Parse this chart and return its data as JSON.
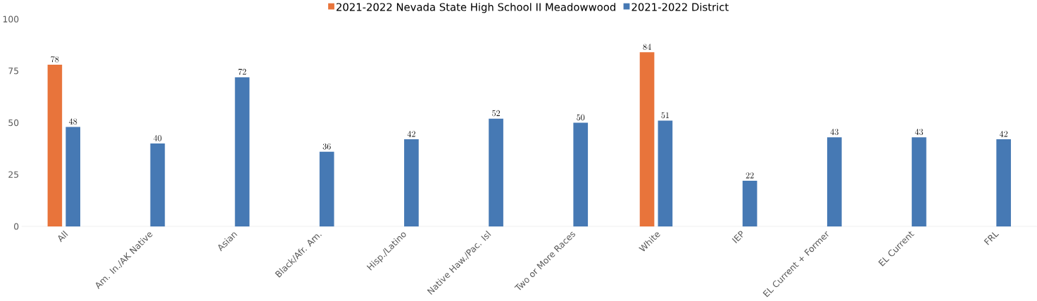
{
  "chart_data": {
    "type": "bar",
    "categories": [
      "All",
      "Am. In./AK Native",
      "Asian",
      "Black/Afr. Am.",
      "Hisp./Latino",
      "Native Haw./Pac. Isl",
      "Two or More Races",
      "White",
      "IEP",
      "EL Current + Former",
      "EL Current",
      "FRL"
    ],
    "series": [
      {
        "name": "2021-2022 Nevada State High School II Meadowwood",
        "color": "#e8743b",
        "values": [
          78,
          null,
          null,
          null,
          null,
          null,
          null,
          84,
          null,
          null,
          null,
          null
        ]
      },
      {
        "name": "2021-2022 District",
        "color": "#4679b4",
        "values": [
          48,
          40,
          72,
          36,
          42,
          52,
          50,
          51,
          22,
          43,
          43,
          42
        ]
      }
    ],
    "ylim": [
      0,
      100
    ],
    "yticks": [
      0,
      25,
      50,
      75,
      100
    ],
    "data_labels": true,
    "legend": "top",
    "grid": false
  }
}
